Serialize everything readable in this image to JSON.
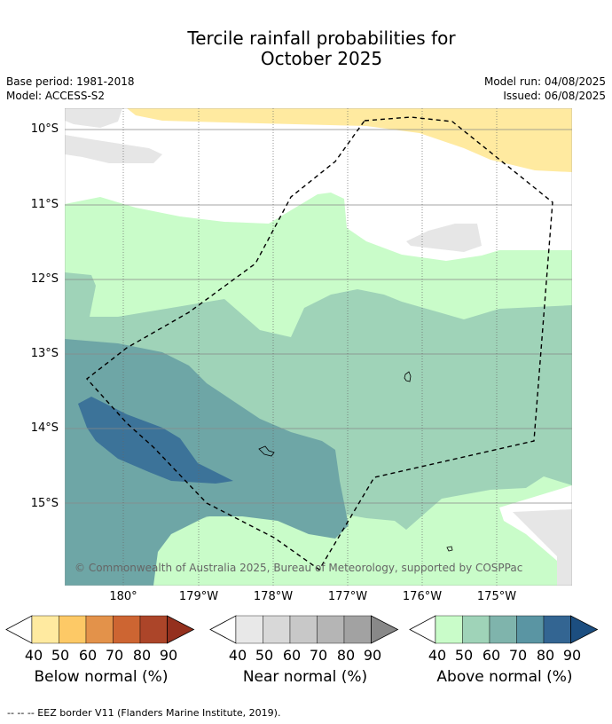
{
  "title": [
    "Tercile rainfall probabilities for",
    "October 2025"
  ],
  "meta": {
    "base_period": "Base period: 1981-2018",
    "model": "Model: ACCESS-S2",
    "model_run": "Model run: 04/08/2025",
    "issued": "Issued: 06/08/2025"
  },
  "map": {
    "lat_labels": [
      "10°S",
      "11°S",
      "12°S",
      "13°S",
      "14°S",
      "15°S"
    ],
    "lon_labels": [
      "180°",
      "179°W",
      "178°W",
      "177°W",
      "176°W",
      "175°W"
    ],
    "copyright": "© Commonwealth of Australia 2025, Bureau of Meteorology, supported by COSPPac"
  },
  "colorbars": [
    {
      "title": "Below normal (%)",
      "ticks": [
        "40",
        "50",
        "60",
        "70",
        "80",
        "90"
      ],
      "colors": [
        "#ffffff",
        "#ffeaa0",
        "#fdc966",
        "#e3924a",
        "#cd6532",
        "#ac4529",
        "#94301e"
      ]
    },
    {
      "title": "Near normal (%)",
      "ticks": [
        "40",
        "50",
        "60",
        "70",
        "80",
        "90"
      ],
      "colors": [
        "#ffffff",
        "#e8e8e8",
        "#d8d8d8",
        "#c8c8c8",
        "#b5b5b5",
        "#a2a2a2",
        "#888888"
      ]
    },
    {
      "title": "Above normal (%)",
      "ticks": [
        "40",
        "50",
        "60",
        "70",
        "80",
        "90"
      ],
      "colors": [
        "#ffffff",
        "#c9fcc9",
        "#9fd3b8",
        "#7fb4ac",
        "#5a95a3",
        "#336592",
        "#1c4e80"
      ]
    }
  ],
  "footnote": "--  --  -- EEZ border V11 (Flanders Marine Institute, 2019)."
}
